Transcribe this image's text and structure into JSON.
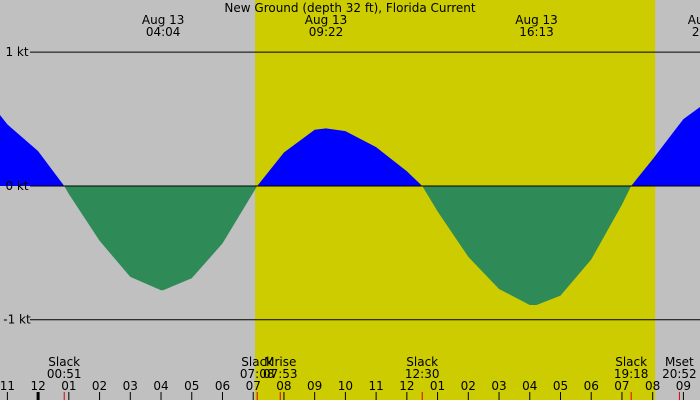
{
  "chart_data": {
    "type": "area",
    "title": "New Ground (depth 32 ft), Florida Current",
    "x": [
      -1.24,
      -1,
      0,
      0.85,
      1,
      2,
      3,
      4,
      4.07,
      5,
      6,
      7,
      7.13,
      8,
      9,
      9.37,
      10,
      11,
      12,
      12.5,
      13,
      14,
      15,
      16,
      16.22,
      17,
      18,
      19,
      19.3,
      20,
      21,
      21.54
    ],
    "series": [
      {
        "values": [
          0.53,
          0.46,
          0.26,
          0,
          -0.06,
          -0.41,
          -0.68,
          -0.78,
          -0.78,
          -0.69,
          -0.43,
          -0.05,
          0,
          0.25,
          0.42,
          0.43,
          0.41,
          0.29,
          0.11,
          0,
          -0.19,
          -0.53,
          -0.77,
          -0.89,
          -0.89,
          -0.82,
          -0.55,
          -0.14,
          0,
          0.2,
          0.5,
          0.59
        ]
      }
    ],
    "flood_color": "#0000ff",
    "ebb_color": "#2e8b57",
    "night_color": "#c0c0c0",
    "day_color": "#cccc00",
    "daylight": [
      7.06,
      20.08
    ],
    "xlim": [
      -1.24,
      21.54
    ],
    "ylim": [
      -1.6,
      1.39
    ],
    "yticks": [
      {
        "value": 1,
        "label": "1 kt"
      },
      {
        "value": 0,
        "label": "0 kt"
      },
      {
        "value": -1,
        "label": "-1 kt"
      }
    ],
    "xticks": [
      {
        "value": -1,
        "label": "11"
      },
      {
        "value": 0,
        "label": "12"
      },
      {
        "value": 1,
        "label": "01"
      },
      {
        "value": 2,
        "label": "02"
      },
      {
        "value": 3,
        "label": "03"
      },
      {
        "value": 4,
        "label": "04"
      },
      {
        "value": 5,
        "label": "05"
      },
      {
        "value": 6,
        "label": "06"
      },
      {
        "value": 7,
        "label": "07"
      },
      {
        "value": 8,
        "label": "08"
      },
      {
        "value": 9,
        "label": "09"
      },
      {
        "value": 10,
        "label": "10"
      },
      {
        "value": 11,
        "label": "11"
      },
      {
        "value": 12,
        "label": "12"
      },
      {
        "value": 13,
        "label": "01"
      },
      {
        "value": 14,
        "label": "02"
      },
      {
        "value": 15,
        "label": "03"
      },
      {
        "value": 16,
        "label": "04"
      },
      {
        "value": 17,
        "label": "05"
      },
      {
        "value": 18,
        "label": "06"
      },
      {
        "value": 19,
        "label": "07"
      },
      {
        "value": 20,
        "label": "08"
      },
      {
        "value": 21,
        "label": "09"
      }
    ],
    "top_labels": [
      {
        "x": 4.07,
        "date": "Aug 13",
        "time": "04:04"
      },
      {
        "x": 9.37,
        "date": "Aug 13",
        "time": "09:22"
      },
      {
        "x": 16.22,
        "date": "Aug 13",
        "time": "16:13"
      },
      {
        "x": 21.4,
        "date": "Au",
        "time": "2"
      }
    ],
    "events": [
      {
        "x": 0.85,
        "name": "Slack",
        "time": "00:51"
      },
      {
        "x": 7.13,
        "name": "Slack",
        "time": "07:08"
      },
      {
        "x": 7.88,
        "name": "Mrise",
        "time": "07:53"
      },
      {
        "x": 12.5,
        "name": "Slack",
        "time": "12:30"
      },
      {
        "x": 19.3,
        "name": "Slack",
        "time": "19:18"
      },
      {
        "x": 20.87,
        "name": "Mset",
        "time": "20:52"
      }
    ]
  }
}
